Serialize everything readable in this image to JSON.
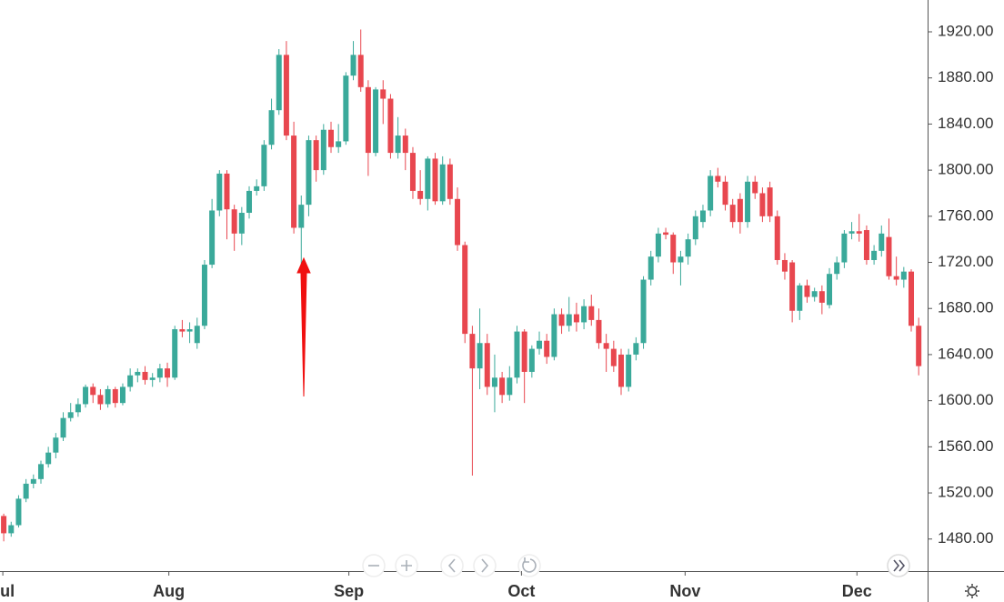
{
  "chart_data": {
    "type": "candlestick",
    "categories": [
      null,
      null,
      null,
      null,
      null,
      null,
      null,
      null,
      null,
      null,
      null,
      null,
      null,
      null,
      null,
      null,
      null,
      null,
      null,
      null,
      null,
      null,
      null,
      null,
      null,
      null,
      null,
      null,
      null,
      null,
      null,
      null,
      null,
      null,
      null,
      null,
      null,
      null,
      null,
      null,
      null,
      null,
      null,
      null,
      null,
      null,
      null,
      null,
      null,
      null,
      null,
      null,
      null,
      null,
      null,
      null,
      null,
      null,
      null,
      null,
      null,
      null,
      null,
      null,
      null,
      null,
      null,
      null,
      null,
      null,
      null,
      null,
      null,
      null,
      null,
      null,
      null,
      null,
      null,
      null,
      null,
      null,
      null,
      null,
      null,
      null,
      null,
      null,
      null,
      null,
      null,
      null,
      null,
      null,
      null,
      null,
      null,
      null,
      null,
      null,
      null,
      null,
      null,
      null,
      null,
      null,
      null,
      null,
      null,
      null,
      null,
      null,
      null,
      null,
      null,
      null,
      null,
      null,
      null,
      null,
      null,
      null,
      null,
      null
    ],
    "open": [
      1500,
      1485,
      1492,
      1515,
      1528,
      1532,
      1545,
      1555,
      1568,
      1585,
      1590,
      1597,
      1612,
      1605,
      1597,
      1610,
      1598,
      1612,
      1622,
      1625,
      1618,
      1620,
      1628,
      1620,
      1662,
      1660,
      1650,
      1665,
      1718,
      1765,
      1797,
      1766,
      1745,
      1763,
      1782,
      1786,
      1822,
      1852,
      1900,
      1830,
      1750,
      1770,
      1826,
      1800,
      1835,
      1820,
      1825,
      1882,
      1900,
      1872,
      1815,
      1870,
      1862,
      1815,
      1830,
      1815,
      1782,
      1775,
      1810,
      1773,
      1805,
      1775,
      1735,
      1658,
      1628,
      1650,
      1612,
      1620,
      1605,
      1620,
      1660,
      1625,
      1645,
      1652,
      1638,
      1675,
      1665,
      1675,
      1668,
      1682,
      1670,
      1650,
      1645,
      1640,
      1612,
      1640,
      1650,
      1705,
      1725,
      1746,
      1744,
      1720,
      1725,
      1740,
      1755,
      1765,
      1795,
      1790,
      1770,
      1775,
      1755,
      1790,
      1780,
      1785,
      1760,
      1722,
      1720,
      1678,
      1700,
      1690,
      1695,
      1683,
      1710,
      1720,
      1745,
      1747,
      1748,
      1722,
      1730,
      1742,
      1708,
      1705,
      1712,
      1665
    ],
    "high": [
      1502,
      1495,
      1518,
      1532,
      1536,
      1548,
      1560,
      1572,
      1590,
      1598,
      1602,
      1614,
      1615,
      1610,
      1613,
      1612,
      1615,
      1628,
      1628,
      1630,
      1624,
      1632,
      1633,
      1665,
      1670,
      1668,
      1672,
      1722,
      1775,
      1800,
      1800,
      1770,
      1768,
      1786,
      1792,
      1826,
      1862,
      1905,
      1912,
      1842,
      1778,
      1830,
      1830,
      1840,
      1842,
      1840,
      1885,
      1912,
      1922,
      1878,
      1872,
      1878,
      1866,
      1846,
      1836,
      1820,
      1800,
      1812,
      1815,
      1812,
      1810,
      1785,
      1738,
      1665,
      1680,
      1658,
      1640,
      1625,
      1630,
      1665,
      1662,
      1648,
      1660,
      1658,
      1680,
      1680,
      1690,
      1685,
      1688,
      1692,
      1680,
      1658,
      1652,
      1645,
      1645,
      1655,
      1708,
      1730,
      1750,
      1750,
      1746,
      1730,
      1745,
      1765,
      1770,
      1800,
      1802,
      1795,
      1775,
      1780,
      1795,
      1795,
      1785,
      1790,
      1765,
      1728,
      1722,
      1702,
      1705,
      1698,
      1700,
      1715,
      1725,
      1748,
      1755,
      1762,
      1752,
      1735,
      1752,
      1758,
      1725,
      1716,
      1714,
      1672
    ],
    "low": [
      1478,
      1482,
      1490,
      1512,
      1524,
      1528,
      1542,
      1550,
      1565,
      1582,
      1586,
      1594,
      1598,
      1592,
      1594,
      1594,
      1596,
      1608,
      1616,
      1614,
      1612,
      1616,
      1612,
      1618,
      1655,
      1650,
      1645,
      1662,
      1715,
      1760,
      1740,
      1730,
      1735,
      1758,
      1778,
      1782,
      1818,
      1848,
      1826,
      1745,
      1705,
      1760,
      1790,
      1796,
      1815,
      1815,
      1822,
      1878,
      1868,
      1795,
      1812,
      1840,
      1810,
      1810,
      1800,
      1775,
      1770,
      1765,
      1770,
      1770,
      1770,
      1730,
      1650,
      1535,
      1610,
      1605,
      1590,
      1598,
      1600,
      1615,
      1598,
      1620,
      1640,
      1632,
      1635,
      1658,
      1660,
      1660,
      1662,
      1665,
      1645,
      1625,
      1625,
      1605,
      1608,
      1635,
      1645,
      1700,
      1720,
      1740,
      1710,
      1700,
      1718,
      1735,
      1750,
      1760,
      1785,
      1765,
      1750,
      1745,
      1750,
      1775,
      1755,
      1755,
      1718,
      1705,
      1668,
      1670,
      1685,
      1686,
      1675,
      1680,
      1705,
      1715,
      1740,
      1738,
      1718,
      1718,
      1725,
      1705,
      1700,
      1698,
      1660,
      1622
    ],
    "close": [
      1485,
      1492,
      1515,
      1528,
      1532,
      1545,
      1555,
      1568,
      1585,
      1590,
      1597,
      1612,
      1605,
      1597,
      1610,
      1598,
      1612,
      1622,
      1625,
      1618,
      1620,
      1628,
      1620,
      1662,
      1660,
      1662,
      1665,
      1718,
      1765,
      1797,
      1766,
      1745,
      1763,
      1782,
      1786,
      1822,
      1852,
      1900,
      1830,
      1750,
      1770,
      1826,
      1800,
      1835,
      1820,
      1825,
      1882,
      1900,
      1872,
      1815,
      1870,
      1862,
      1815,
      1830,
      1815,
      1782,
      1775,
      1810,
      1773,
      1805,
      1775,
      1735,
      1658,
      1628,
      1650,
      1612,
      1620,
      1605,
      1620,
      1660,
      1625,
      1645,
      1652,
      1638,
      1675,
      1665,
      1675,
      1668,
      1682,
      1670,
      1650,
      1645,
      1630,
      1612,
      1640,
      1650,
      1705,
      1725,
      1745,
      1744,
      1720,
      1725,
      1740,
      1760,
      1765,
      1795,
      1790,
      1770,
      1755,
      1755,
      1790,
      1780,
      1760,
      1760,
      1722,
      1712,
      1678,
      1700,
      1690,
      1695,
      1685,
      1710,
      1720,
      1745,
      1747,
      1745,
      1722,
      1730,
      1745,
      1708,
      1705,
      1712,
      1665,
      1630
    ],
    "up_color": "#3aa99a",
    "down_color": "#e8474f",
    "wick_color": "#999999",
    "xlim": [
      -0.5,
      124.2
    ],
    "xticks": [
      {
        "value": -0.12,
        "label": "Jul"
      },
      {
        "value": 22.2,
        "label": "Aug"
      },
      {
        "value": 46.4,
        "label": "Sep"
      },
      {
        "value": 69.6,
        "label": "Oct"
      },
      {
        "value": 91.6,
        "label": "Nov"
      },
      {
        "value": 114.7,
        "label": "Dec"
      }
    ],
    "ylim": [
      1452.2,
      1947.6
    ],
    "yticks": [
      {
        "value": 1480,
        "label": "1480.00"
      },
      {
        "value": 1520,
        "label": "1520.00"
      },
      {
        "value": 1560,
        "label": "1560.00"
      },
      {
        "value": 1600,
        "label": "1600.00"
      },
      {
        "value": 1640,
        "label": "1640.00"
      },
      {
        "value": 1680,
        "label": "1680.00"
      },
      {
        "value": 1720,
        "label": "1720.00"
      },
      {
        "value": 1760,
        "label": "1760.00"
      },
      {
        "value": 1800,
        "label": "1800.00"
      },
      {
        "value": 1840,
        "label": "1840.00"
      },
      {
        "value": 1880,
        "label": "1880.00"
      },
      {
        "value": 1920,
        "label": "1920.00"
      }
    ],
    "grid": false
  }
}
